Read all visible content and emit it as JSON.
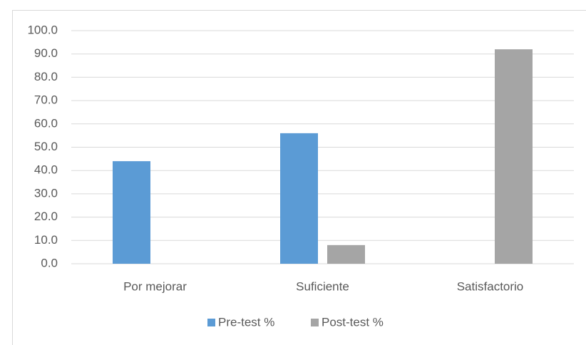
{
  "chart_data": {
    "type": "bar",
    "categories": [
      "Por mejorar",
      "Suficiente",
      "Satisfactorio"
    ],
    "series": [
      {
        "name": "Pre-test %",
        "color": "#5b9bd5",
        "values": [
          44,
          56,
          0
        ]
      },
      {
        "name": "Post-test %",
        "color": "#a5a5a5",
        "values": [
          0,
          8,
          92
        ]
      }
    ],
    "ylim": [
      0,
      100
    ],
    "yticks": [
      {
        "value": 0,
        "label": "0.0"
      },
      {
        "value": 10,
        "label": "10.0"
      },
      {
        "value": 20,
        "label": "20.0"
      },
      {
        "value": 30,
        "label": "30.0"
      },
      {
        "value": 40,
        "label": "40.0"
      },
      {
        "value": 50,
        "label": "50.0"
      },
      {
        "value": 60,
        "label": "60.0"
      },
      {
        "value": 70,
        "label": "70.0"
      },
      {
        "value": 80,
        "label": "80.0"
      },
      {
        "value": 90,
        "label": "90.0"
      },
      {
        "value": 100,
        "label": "100.0"
      }
    ],
    "grid": true,
    "legend": "bottom"
  }
}
